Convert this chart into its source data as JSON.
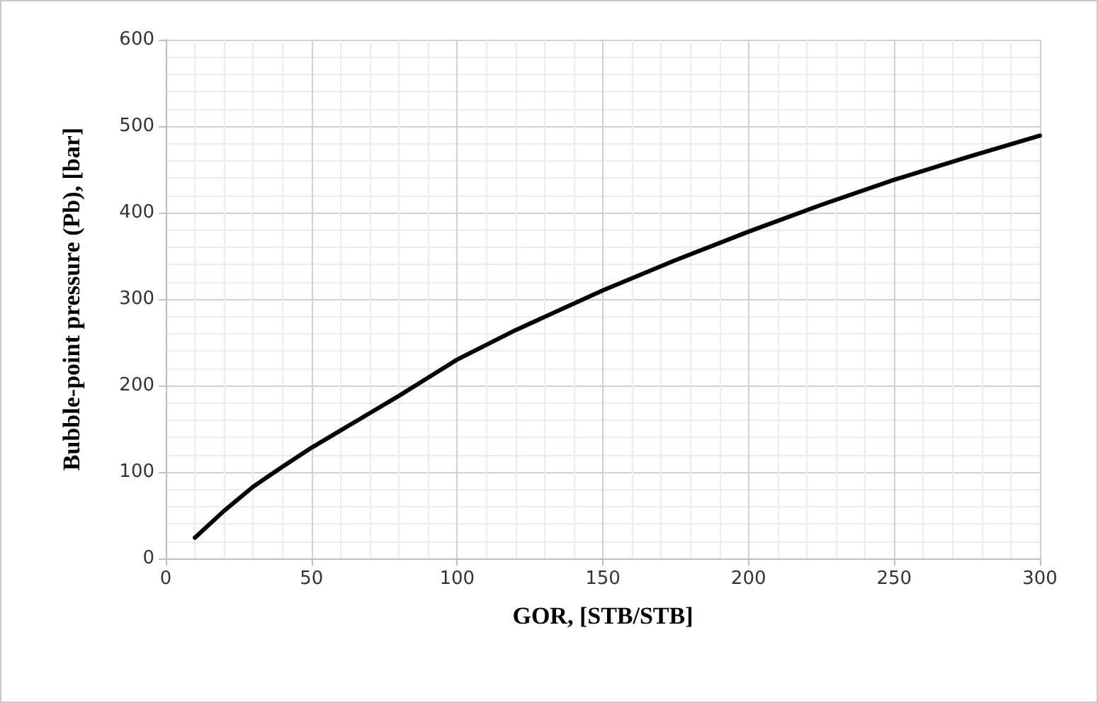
{
  "chart_data": {
    "type": "line",
    "xlabel": "GOR, [STB/STB]",
    "ylabel": "Bubble-point pressure (Pb), [bar]",
    "x": [
      10,
      20,
      30,
      40,
      50,
      60,
      70,
      80,
      90,
      100,
      120,
      150,
      175,
      200,
      225,
      250,
      275,
      300
    ],
    "series": [
      {
        "color": "#000000",
        "values": [
          24,
          55,
          83,
          106,
          128,
          148,
          168,
          188,
          209,
          230,
          264,
          310,
          345,
          378,
          409,
          438,
          464,
          489
        ]
      }
    ],
    "xlim": [
      0,
      300
    ],
    "xticks": [
      0,
      50,
      100,
      150,
      200,
      250,
      300
    ],
    "ylim": [
      0,
      600
    ],
    "yticks": [
      0,
      100,
      200,
      300,
      400,
      500,
      600
    ],
    "grid": true,
    "marker": "none",
    "line_style": "solid"
  }
}
